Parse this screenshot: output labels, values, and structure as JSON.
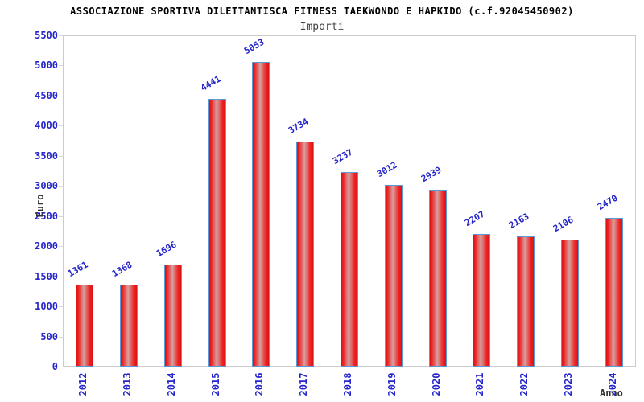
{
  "header": {
    "title": "ASSOCIAZIONE SPORTIVA DILETTANTISCA FITNESS TAEKWONDO E HAPKIDO (c.f.92045450902)",
    "subtitle": "Importi"
  },
  "chart_data": {
    "type": "bar",
    "title": "ASSOCIAZIONE SPORTIVA DILETTANTISCA FITNESS TAEKWONDO E HAPKIDO (c.f.92045450902)",
    "subtitle": "Importi",
    "xlabel": "Anno",
    "ylabel": "Euro",
    "categories": [
      "2012",
      "2013",
      "2014",
      "2015",
      "2016",
      "2017",
      "2018",
      "2019",
      "2020",
      "2021",
      "2022",
      "2023",
      "2024"
    ],
    "values": [
      1361,
      1368,
      1696,
      4441,
      5053,
      3734,
      3237,
      3012,
      2939,
      2207,
      2163,
      2106,
      2470
    ],
    "ylim": [
      0,
      5500
    ],
    "ytick_step": 500,
    "ytick_labels": [
      "0",
      "500",
      "1000",
      "1500",
      "2000",
      "2500",
      "3000",
      "3500",
      "4000",
      "4500",
      "5000",
      "5500"
    ],
    "grid": "horizontal-bands-alternating",
    "legend": "none",
    "colors": {
      "tick_text": "#2525cc",
      "value_label_text": "#2525cc",
      "bar_edge_red": "#d91414",
      "bar_bright_red": "#ee2121",
      "bar_center_light": "#d6a0a0",
      "bar_border": "#5b9bd5",
      "band_gray": "#f2f2f2",
      "band_white": "#ffffff",
      "gridline": "#d9d9d9",
      "plot_border": "#cccccc",
      "title_text": "#000000",
      "subtitle_text": "#444444",
      "axis_title_text": "#333333"
    }
  }
}
